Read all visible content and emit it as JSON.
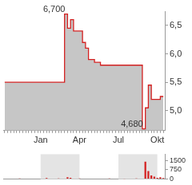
{
  "chart_data": [
    {
      "type": "line",
      "categories": [
        null,
        null,
        null,
        null,
        null,
        null,
        null,
        null,
        null,
        null,
        null,
        null,
        "Jan",
        null,
        null,
        null,
        null,
        null,
        null,
        null,
        null,
        null,
        null,
        null,
        null,
        "Apr",
        null,
        null,
        null,
        null,
        null,
        null,
        null,
        null,
        null,
        null,
        null,
        null,
        "Jul",
        null,
        null,
        null,
        null,
        null,
        null,
        null,
        null,
        null,
        null,
        null,
        null,
        "Okt",
        null,
        null
      ],
      "values": [
        5.5,
        5.5,
        5.5,
        5.5,
        5.5,
        5.5,
        5.5,
        5.5,
        5.5,
        5.5,
        5.5,
        5.5,
        5.5,
        5.5,
        5.5,
        5.5,
        5.5,
        5.5,
        5.5,
        5.5,
        5.5,
        6.7,
        6.45,
        6.6,
        6.4,
        6.4,
        6.4,
        6.2,
        6.1,
        5.9,
        5.9,
        5.85,
        5.85,
        5.8,
        5.8,
        5.8,
        5.8,
        5.8,
        5.8,
        5.8,
        5.8,
        5.8,
        5.8,
        5.8,
        5.8,
        5.8,
        5.8,
        4.68,
        5.05,
        5.45,
        5.2,
        5.2,
        5.2,
        5.25
      ],
      "color": "#d42020",
      "line_style": "step",
      "ylim": [
        4.65,
        6.75
      ],
      "yticks": [
        {
          "value": 5.0,
          "label": "5,0"
        },
        {
          "value": 5.5,
          "label": "5,5"
        },
        {
          "value": 6.0,
          "label": "6,0"
        },
        {
          "value": 6.5,
          "label": "6,5"
        }
      ],
      "grid": false,
      "annotations": [
        {
          "text": "6,700",
          "x": 21,
          "y": 6.7
        },
        {
          "text": "4,680",
          "x": 47,
          "y": 4.68
        }
      ]
    },
    {
      "type": "bar",
      "categories": [
        null,
        null,
        null,
        null,
        null,
        null,
        null,
        null,
        null,
        null,
        null,
        null,
        "Jan",
        null,
        null,
        null,
        null,
        null,
        null,
        null,
        null,
        null,
        null,
        null,
        null,
        "Apr",
        null,
        null,
        null,
        null,
        null,
        null,
        null,
        null,
        null,
        null,
        null,
        null,
        "Jul",
        null,
        null,
        null,
        null,
        null,
        null,
        null,
        null,
        null,
        null,
        null,
        null,
        "Okt",
        null,
        null
      ],
      "values": [
        0,
        0,
        0,
        0,
        0,
        60,
        0,
        0,
        0,
        0,
        40,
        0,
        0,
        0,
        80,
        0,
        0,
        0,
        50,
        0,
        0,
        150,
        100,
        0,
        0,
        60,
        0,
        0,
        0,
        0,
        40,
        0,
        0,
        0,
        0,
        50,
        0,
        0,
        0,
        0,
        30,
        0,
        0,
        0,
        60,
        0,
        0,
        1400,
        650,
        300,
        200,
        100,
        150,
        80
      ],
      "color": "#d42020",
      "ylim": [
        0,
        2000
      ],
      "yticks": [
        0,
        750,
        1500
      ],
      "grid": false,
      "tick_labels": "y"
    }
  ]
}
